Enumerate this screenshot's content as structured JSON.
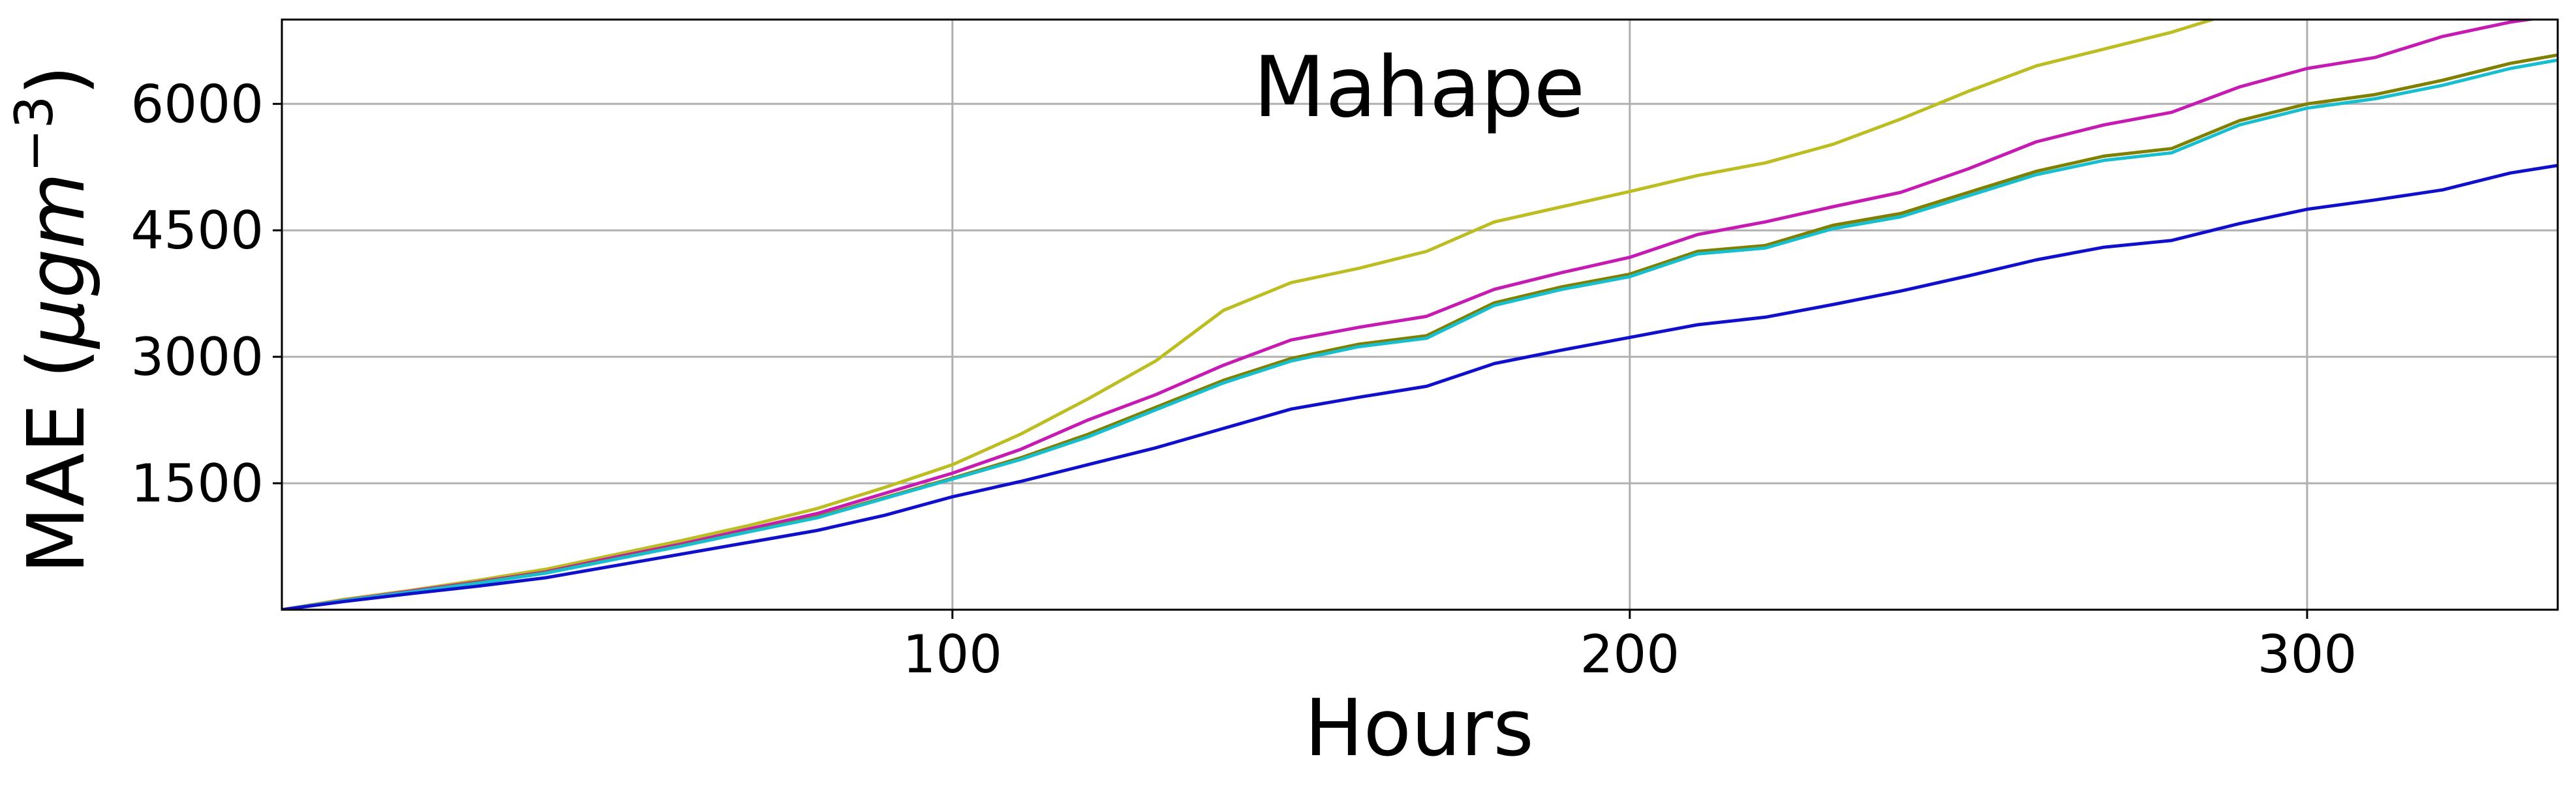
{
  "chart_data": {
    "type": "line",
    "title": "Mahape",
    "xlabel": "Hours",
    "ylabel_main": "MAE (",
    "ylabel_mu": "μ",
    "ylabel_unit": "gm",
    "ylabel_exp": "−3",
    "ylabel_close": ")",
    "xlim": [
      1,
      337
    ],
    "ylim": [
      0,
      7000
    ],
    "xticks": [
      100,
      200,
      300
    ],
    "xtick_labels": [
      "100",
      "200",
      "300"
    ],
    "yticks": [
      1500,
      3000,
      4500,
      6000
    ],
    "ytick_labels": [
      "1500",
      "3000",
      "4500",
      "6000"
    ],
    "grid": true,
    "series": [
      {
        "color": "#bcbd22",
        "points": [
          [
            1,
            0
          ],
          [
            10,
            120
          ],
          [
            20,
            230
          ],
          [
            30,
            350
          ],
          [
            40,
            480
          ],
          [
            50,
            650
          ],
          [
            60,
            820
          ],
          [
            70,
            1000
          ],
          [
            80,
            1200
          ],
          [
            90,
            1450
          ],
          [
            100,
            1720
          ],
          [
            110,
            2080
          ],
          [
            120,
            2500
          ],
          [
            130,
            2950
          ],
          [
            140,
            3550
          ],
          [
            150,
            3880
          ],
          [
            160,
            4050
          ],
          [
            170,
            4250
          ],
          [
            180,
            4600
          ],
          [
            190,
            4780
          ],
          [
            200,
            4960
          ],
          [
            210,
            5150
          ],
          [
            220,
            5300
          ],
          [
            230,
            5520
          ],
          [
            240,
            5820
          ],
          [
            250,
            6150
          ],
          [
            260,
            6450
          ],
          [
            270,
            6650
          ],
          [
            280,
            6850
          ],
          [
            290,
            7100
          ]
        ]
      },
      {
        "color": "#c51bb3",
        "points": [
          [
            1,
            0
          ],
          [
            10,
            110
          ],
          [
            20,
            220
          ],
          [
            30,
            330
          ],
          [
            40,
            450
          ],
          [
            50,
            620
          ],
          [
            60,
            780
          ],
          [
            70,
            960
          ],
          [
            80,
            1140
          ],
          [
            90,
            1380
          ],
          [
            100,
            1620
          ],
          [
            110,
            1900
          ],
          [
            120,
            2250
          ],
          [
            130,
            2550
          ],
          [
            140,
            2900
          ],
          [
            150,
            3200
          ],
          [
            160,
            3350
          ],
          [
            170,
            3480
          ],
          [
            180,
            3800
          ],
          [
            190,
            4000
          ],
          [
            200,
            4180
          ],
          [
            210,
            4450
          ],
          [
            220,
            4600
          ],
          [
            230,
            4780
          ],
          [
            240,
            4950
          ],
          [
            250,
            5230
          ],
          [
            260,
            5550
          ],
          [
            270,
            5750
          ],
          [
            280,
            5900
          ],
          [
            290,
            6200
          ],
          [
            300,
            6420
          ],
          [
            310,
            6550
          ],
          [
            320,
            6800
          ],
          [
            330,
            6970
          ],
          [
            337,
            7050
          ]
        ]
      },
      {
        "color": "#808000",
        "points": [
          [
            1,
            0
          ],
          [
            10,
            105
          ],
          [
            20,
            210
          ],
          [
            30,
            320
          ],
          [
            40,
            440
          ],
          [
            50,
            600
          ],
          [
            60,
            760
          ],
          [
            70,
            930
          ],
          [
            80,
            1100
          ],
          [
            90,
            1330
          ],
          [
            100,
            1560
          ],
          [
            110,
            1800
          ],
          [
            120,
            2080
          ],
          [
            130,
            2400
          ],
          [
            140,
            2720
          ],
          [
            150,
            2980
          ],
          [
            160,
            3150
          ],
          [
            170,
            3250
          ],
          [
            180,
            3640
          ],
          [
            190,
            3830
          ],
          [
            200,
            3980
          ],
          [
            210,
            4250
          ],
          [
            220,
            4320
          ],
          [
            230,
            4560
          ],
          [
            240,
            4700
          ],
          [
            250,
            4950
          ],
          [
            260,
            5200
          ],
          [
            270,
            5380
          ],
          [
            280,
            5470
          ],
          [
            290,
            5800
          ],
          [
            300,
            6000
          ],
          [
            310,
            6110
          ],
          [
            320,
            6280
          ],
          [
            330,
            6480
          ],
          [
            337,
            6580
          ]
        ]
      },
      {
        "color": "#17becf",
        "points": [
          [
            1,
            0
          ],
          [
            10,
            105
          ],
          [
            20,
            210
          ],
          [
            30,
            315
          ],
          [
            40,
            435
          ],
          [
            50,
            595
          ],
          [
            60,
            755
          ],
          [
            70,
            925
          ],
          [
            80,
            1090
          ],
          [
            90,
            1320
          ],
          [
            100,
            1550
          ],
          [
            110,
            1780
          ],
          [
            120,
            2050
          ],
          [
            130,
            2370
          ],
          [
            140,
            2690
          ],
          [
            150,
            2950
          ],
          [
            160,
            3120
          ],
          [
            170,
            3220
          ],
          [
            180,
            3610
          ],
          [
            190,
            3800
          ],
          [
            200,
            3950
          ],
          [
            210,
            4220
          ],
          [
            220,
            4290
          ],
          [
            230,
            4520
          ],
          [
            240,
            4660
          ],
          [
            250,
            4910
          ],
          [
            260,
            5160
          ],
          [
            270,
            5330
          ],
          [
            280,
            5420
          ],
          [
            290,
            5750
          ],
          [
            300,
            5950
          ],
          [
            310,
            6060
          ],
          [
            320,
            6220
          ],
          [
            330,
            6420
          ],
          [
            337,
            6520
          ]
        ]
      },
      {
        "color": "#1010cc",
        "points": [
          [
            1,
            0
          ],
          [
            10,
            95
          ],
          [
            20,
            190
          ],
          [
            30,
            280
          ],
          [
            40,
            380
          ],
          [
            50,
            520
          ],
          [
            60,
            660
          ],
          [
            70,
            800
          ],
          [
            80,
            940
          ],
          [
            90,
            1120
          ],
          [
            100,
            1340
          ],
          [
            110,
            1520
          ],
          [
            120,
            1720
          ],
          [
            130,
            1920
          ],
          [
            140,
            2150
          ],
          [
            150,
            2380
          ],
          [
            160,
            2520
          ],
          [
            170,
            2650
          ],
          [
            180,
            2920
          ],
          [
            190,
            3080
          ],
          [
            200,
            3230
          ],
          [
            210,
            3380
          ],
          [
            220,
            3470
          ],
          [
            230,
            3620
          ],
          [
            240,
            3780
          ],
          [
            250,
            3960
          ],
          [
            260,
            4150
          ],
          [
            270,
            4300
          ],
          [
            280,
            4380
          ],
          [
            290,
            4580
          ],
          [
            300,
            4750
          ],
          [
            310,
            4860
          ],
          [
            320,
            4980
          ],
          [
            330,
            5180
          ],
          [
            337,
            5270
          ]
        ]
      }
    ]
  }
}
